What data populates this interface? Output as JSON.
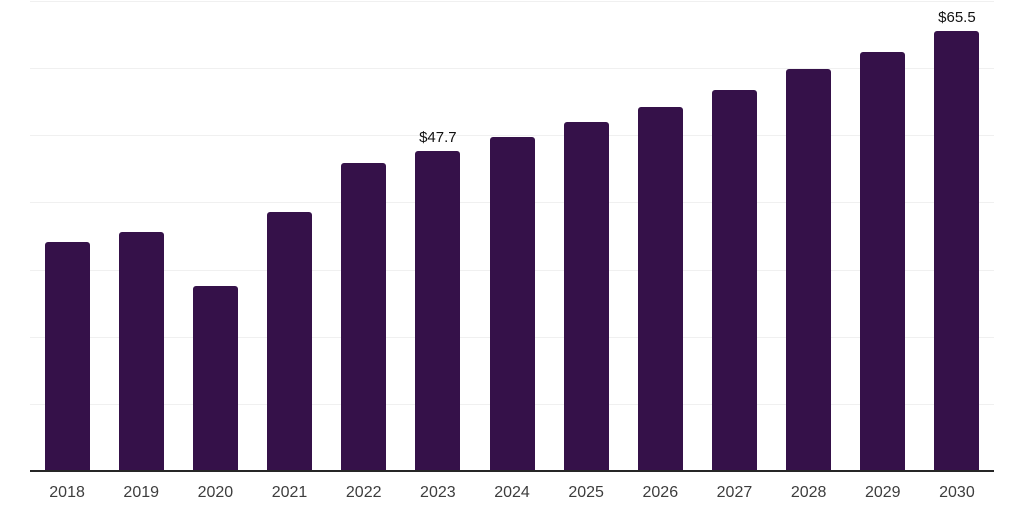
{
  "chart_data": {
    "type": "bar",
    "title": "",
    "xlabel": "",
    "ylabel": "",
    "categories": [
      "2018",
      "2019",
      "2020",
      "2021",
      "2022",
      "2023",
      "2024",
      "2025",
      "2026",
      "2027",
      "2028",
      "2029",
      "2030"
    ],
    "values": [
      34.1,
      35.6,
      27.6,
      38.6,
      45.9,
      47.7,
      49.8,
      52.0,
      54.2,
      56.8,
      59.9,
      62.4,
      65.5
    ],
    "data_labels": [
      "",
      "",
      "",
      "",
      "",
      "$47.7",
      "",
      "",
      "",
      "",
      "",
      "",
      "$65.5"
    ],
    "ylim": [
      0,
      70
    ],
    "grid_step": 10,
    "grid": "horizontal",
    "legend": "none",
    "y_axis_labels_visible": false
  },
  "colors": {
    "bar": "#351149",
    "gridline": "#f0f0f0",
    "axis_line": "#262626",
    "tick_label": "#3d3d3d",
    "data_label": "#111111",
    "background": "#ffffff"
  }
}
